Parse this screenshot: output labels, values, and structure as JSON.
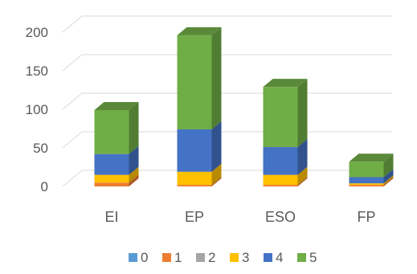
{
  "chart_data": {
    "type": "bar",
    "stacked": true,
    "three_d": true,
    "categories": [
      "EI",
      "EP",
      "ESO",
      "FP"
    ],
    "series": [
      {
        "name": "0",
        "values": [
          0,
          0,
          0,
          0
        ],
        "color": "#5b9bd5"
      },
      {
        "name": "1",
        "values": [
          5,
          2,
          2,
          2
        ],
        "color": "#ed7d31"
      },
      {
        "name": "2",
        "values": [
          0,
          0,
          0,
          0
        ],
        "color": "#a5a5a5"
      },
      {
        "name": "3",
        "values": [
          10,
          17,
          13,
          2
        ],
        "color": "#ffc000"
      },
      {
        "name": "4",
        "values": [
          27,
          55,
          36,
          8
        ],
        "color": "#4472c4"
      },
      {
        "name": "5",
        "values": [
          57,
          122,
          78,
          20
        ],
        "color": "#70ad47"
      }
    ],
    "yticks": [
      0,
      50,
      100,
      150,
      200
    ],
    "ylim": [
      0,
      200
    ],
    "grid": true,
    "legend": "bottom"
  }
}
